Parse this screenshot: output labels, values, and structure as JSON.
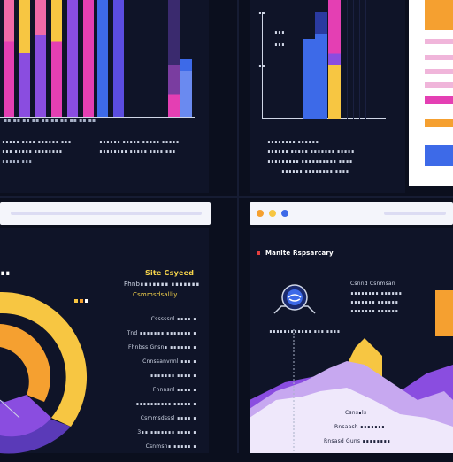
{
  "colors": {
    "background": "#0b0f1e",
    "panel": "#0f1428",
    "magenta": "#e43fb3",
    "pink": "#f06aa8",
    "purple": "#8a4de0",
    "blue": "#3d6ae8",
    "yellow": "#f7c642",
    "orange": "#f5a030",
    "lilac": "#d9c7f5",
    "white": "#ffffff"
  },
  "top_left": {
    "chart_data": {
      "type": "bar",
      "categories": [
        "",
        "",
        "",
        "",
        "",
        "",
        "",
        "",
        "",
        ""
      ],
      "series_stacked": true
    },
    "legend": [
      "∎∎∎∎∎ ∎∎∎∎ ∎∎∎∎∎∎ ∎∎∎",
      "∎∎∎ ∎∎∎∎∎ ∎∎∎∎∎∎∎∎",
      "∎∎∎∎∎∎ ∎∎∎∎∎ ∎∎∎∎∎ ∎∎∎∎∎",
      "∎∎∎∎∎∎∎∎ ∎∎∎∎∎ ∎∎∎∎ ∎∎∎"
    ]
  },
  "top_mid": {
    "legend": [
      "∎∎∎∎∎∎∎∎ ∎∎∎∎∎∎",
      "∎∎∎∎∎∎ ∎∎∎∎∎ ∎∎∎∎∎∎∎ ∎∎∎∎∎",
      "∎∎∎∎∎∎∎∎∎ ∎∎∎∎∎∎∎∎∎∎ ∎∎∎∎",
      "∎∎∎∎∎∎ ∎∎∎∎∎∎∎∎ ∎∎∎∎"
    ],
    "y_ticks": [
      "∎∎∎",
      "∎∎∎",
      "∎∎",
      "∎∎"
    ]
  },
  "bottom_left": {
    "partial_title": "∎∎",
    "heading_lines": [
      "Site Csyeed",
      "Fhnb∎∎∎∎∎∎∎ ∎∎∎∎∎∎∎",
      "Csmmsdsalliy"
    ],
    "list": [
      "Csssssnl ∎∎∎∎ ∎",
      "Tnd ∎∎∎∎∎∎∎ ∎∎∎∎∎∎∎ ∎",
      "Fhnbss Gnsn∎ ∎∎∎∎∎∎ ∎",
      "Cnnssanvnnl ∎∎∎ ∎",
      "∎∎∎∎∎∎∎ ∎∎∎∎ ∎",
      "Fnnnsnl ∎∎∎∎ ∎",
      "∎∎∎∎∎∎∎∎∎∎ ∎∎∎∎∎ ∎",
      "Csmmsdsssl ∎∎∎∎ ∎",
      "3∎∎  ∎∎∎∎∎∎∎ ∎∎∎∎ ∎",
      "Csnmsn∎ ∎∎∎∎∎ ∎"
    ]
  },
  "bottom_right": {
    "title": "Manlte Rspsarcary",
    "side_lines": [
      "Csnnd Csnmsan",
      "∎∎∎∎∎∎∎∎ ∎∎∎∎∎∎",
      "∎∎∎∎∎∎∎ ∎∎∎∎∎∎",
      "∎∎∎∎∎∎∎ ∎∎∎∎∎∎"
    ],
    "caption": "∎∎∎∎∎∎∎∎∎∎∎∎ ∎∎∎ ∎∎∎∎",
    "notes": [
      "Csns∎ls",
      "Rnsaash ∎∎∎∎∎∎∎",
      "Rnsasd Guns ∎∎∎∎∎∎∎∎"
    ]
  },
  "middle_right_window": {
    "dots": [
      "#f5a030",
      "#f7c642",
      "#3d6ae8"
    ]
  }
}
